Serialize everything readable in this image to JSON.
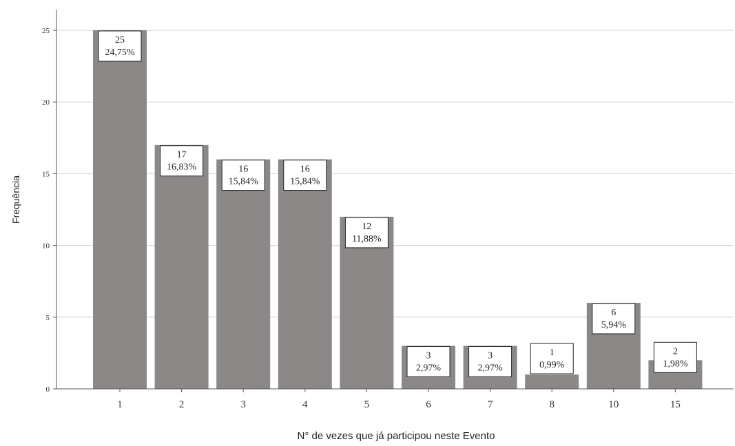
{
  "chart_data": {
    "type": "bar",
    "categories": [
      "1",
      "2",
      "3",
      "4",
      "5",
      "6",
      "7",
      "8",
      "10",
      "15"
    ],
    "values": [
      25,
      17,
      16,
      16,
      12,
      3,
      3,
      1,
      6,
      2
    ],
    "data_labels": [
      [
        "25",
        "24,75%"
      ],
      [
        "17",
        "16,83%"
      ],
      [
        "16",
        "15,84%"
      ],
      [
        "16",
        "15,84%"
      ],
      [
        "12",
        "11,88%"
      ],
      [
        "3",
        "2,97%"
      ],
      [
        "3",
        "2,97%"
      ],
      [
        "1",
        "0,99%"
      ],
      [
        "6",
        "5,94%"
      ],
      [
        "2",
        "1,98%"
      ]
    ],
    "title": "",
    "xlabel": "N° de vezes que já participou neste Evento",
    "ylabel": "Frequência",
    "ylim": [
      0,
      25
    ],
    "yticks": [
      "0",
      "5",
      "10",
      "15",
      "20",
      "25"
    ],
    "grid": true,
    "colors": {
      "bar": "#8c8888",
      "grid": "#d0d0d0",
      "axis": "#555555"
    }
  }
}
